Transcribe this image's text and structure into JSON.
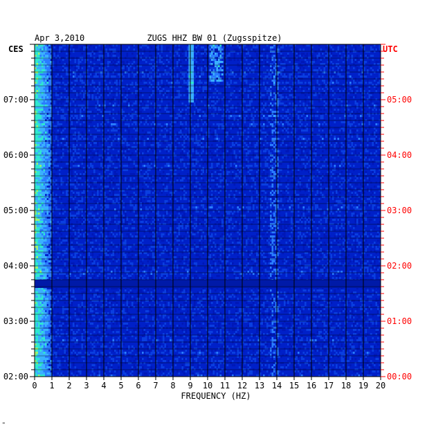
{
  "chart_data": {
    "type": "heatmap",
    "title": "ZUGS HHZ BW 01 (Zugsspitze)",
    "date": "Apr 3,2010",
    "xlabel": "FREQUENCY (HZ)",
    "x_range": [
      0,
      20
    ],
    "x_ticks": [
      "0",
      "1",
      "2",
      "3",
      "4",
      "5",
      "6",
      "7",
      "8",
      "9",
      "10",
      "11",
      "12",
      "13",
      "14",
      "15",
      "16",
      "17",
      "18",
      "19",
      "20"
    ],
    "left_axis_label": "CES",
    "right_axis_label": "UTC",
    "left_ticks": [
      "07:00",
      "06:00",
      "05:00",
      "04:00",
      "03:00",
      "02:00"
    ],
    "right_ticks": [
      "05:00",
      "04:00",
      "03:00",
      "02:00",
      "01:00",
      "00:00"
    ],
    "grid": true,
    "colors": {
      "background": "#0020c8",
      "low": "#0018b8",
      "mid": "#2a7cff",
      "high": "#2ee8d0",
      "peak": "#f0f020",
      "max": "#ff2020",
      "utc_label": "#ff0000"
    }
  },
  "footer_mark": "\""
}
